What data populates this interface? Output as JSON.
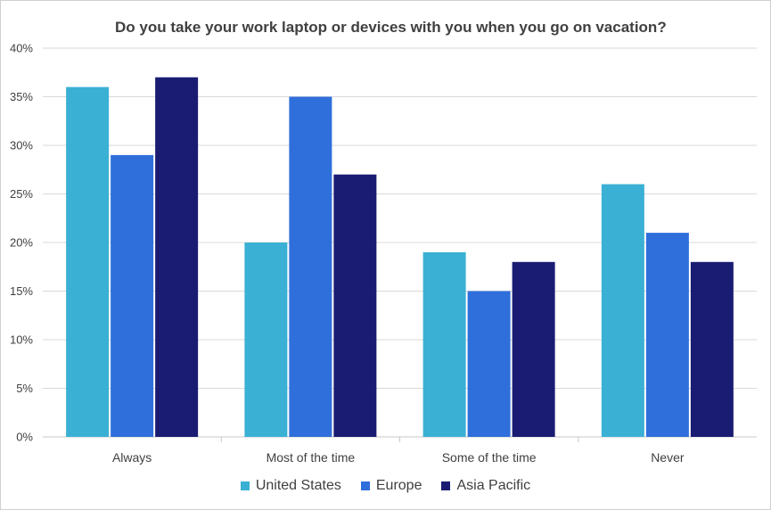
{
  "chart_data": {
    "type": "bar",
    "title": "Do you take your work laptop or devices with you when you go on vacation?",
    "categories": [
      "Always",
      "Most of the time",
      "Some of the time",
      "Never"
    ],
    "series": [
      {
        "name": "United States",
        "color": "#3ab0d4",
        "values": [
          36,
          20,
          19,
          26
        ]
      },
      {
        "name": "Europe",
        "color": "#2f6fdb",
        "values": [
          29,
          35,
          15,
          21
        ]
      },
      {
        "name": "Asia Pacific",
        "color": "#1a1c73",
        "values": [
          37,
          27,
          18,
          18
        ]
      }
    ],
    "y_ticks": [
      "0%",
      "5%",
      "10%",
      "15%",
      "20%",
      "25%",
      "30%",
      "35%",
      "40%"
    ],
    "ylim": [
      0,
      40
    ],
    "ylabel": "",
    "xlabel": "",
    "grid": true,
    "legend_position": "bottom"
  }
}
